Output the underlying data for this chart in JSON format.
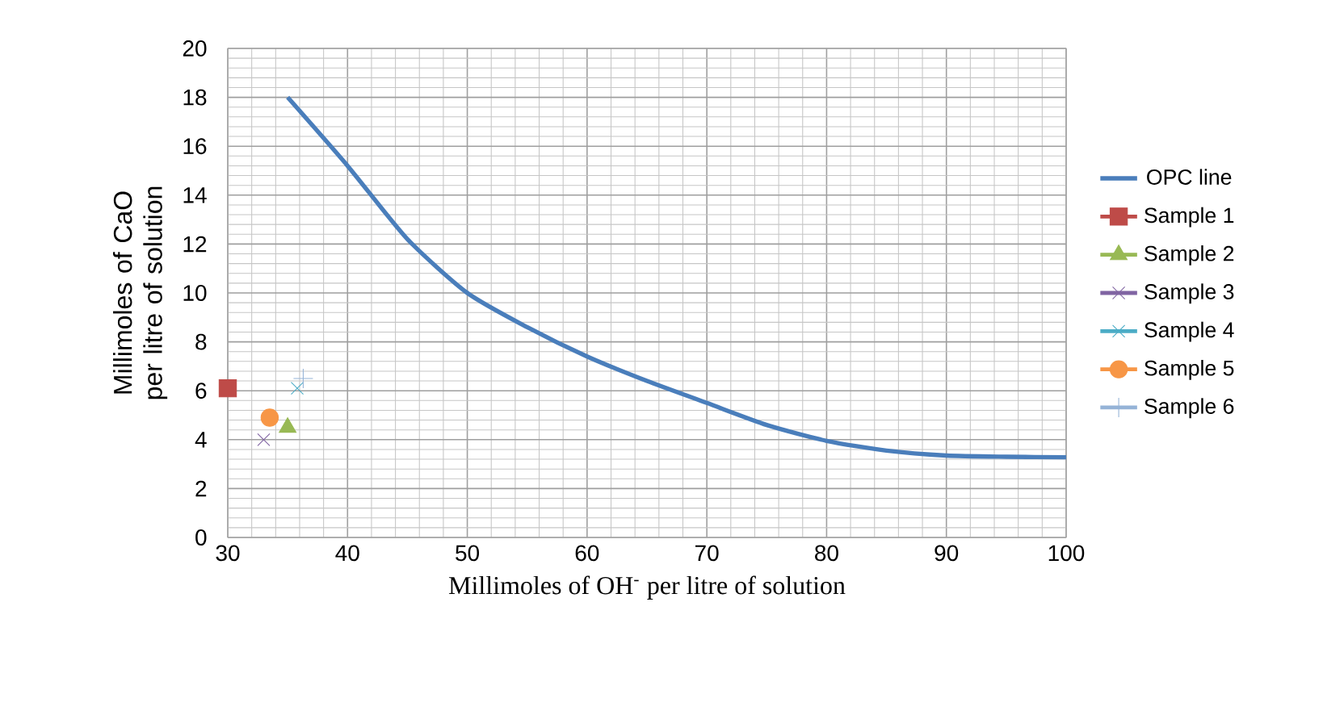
{
  "chart_data": {
    "type": "scatter",
    "xlabel": "Millimoles of OH$^{-}$ per litre of solution",
    "ylabel": "Millimoles of CaO per litre of solution",
    "xlim": [
      30,
      100
    ],
    "xticks": [
      30,
      40,
      50,
      60,
      70,
      80,
      90,
      100
    ],
    "ylim": [
      0,
      20
    ],
    "yticks": [
      0,
      2,
      4,
      6,
      8,
      10,
      12,
      14,
      16,
      18,
      20
    ],
    "grid": true,
    "legend": "right",
    "series": [
      {
        "name": "OPC line",
        "type": "line",
        "color": "#4a7ebb",
        "marker": "none",
        "x": [
          35,
          40,
          45,
          50,
          55,
          60,
          65,
          70,
          75,
          80,
          85,
          90,
          95,
          100
        ],
        "values": [
          18,
          15.2,
          12.2,
          10,
          8.6,
          7.4,
          6.4,
          5.5,
          4.6,
          3.95,
          3.55,
          3.35,
          3.3,
          3.28
        ]
      },
      {
        "name": "Sample 1",
        "color": "#be4b48",
        "marker": "square",
        "x": [
          30
        ],
        "values": [
          6.1
        ]
      },
      {
        "name": "Sample 2",
        "color": "#98b954",
        "marker": "triangle",
        "x": [
          35
        ],
        "values": [
          4.5
        ]
      },
      {
        "name": "Sample 3",
        "color": "#8064a2",
        "marker": "cross",
        "x": [
          33
        ],
        "values": [
          4.0
        ]
      },
      {
        "name": "Sample 4",
        "color": "#4bacc6",
        "marker": "cross",
        "x": [
          35.8
        ],
        "values": [
          6.1
        ]
      },
      {
        "name": "Sample 5",
        "color": "#f79646",
        "marker": "circle",
        "x": [
          33.5
        ],
        "values": [
          4.9
        ]
      },
      {
        "name": "Sample 6",
        "color": "#95b3d7",
        "marker": "plus",
        "x": [
          36.3
        ],
        "values": [
          6.5
        ]
      }
    ]
  }
}
